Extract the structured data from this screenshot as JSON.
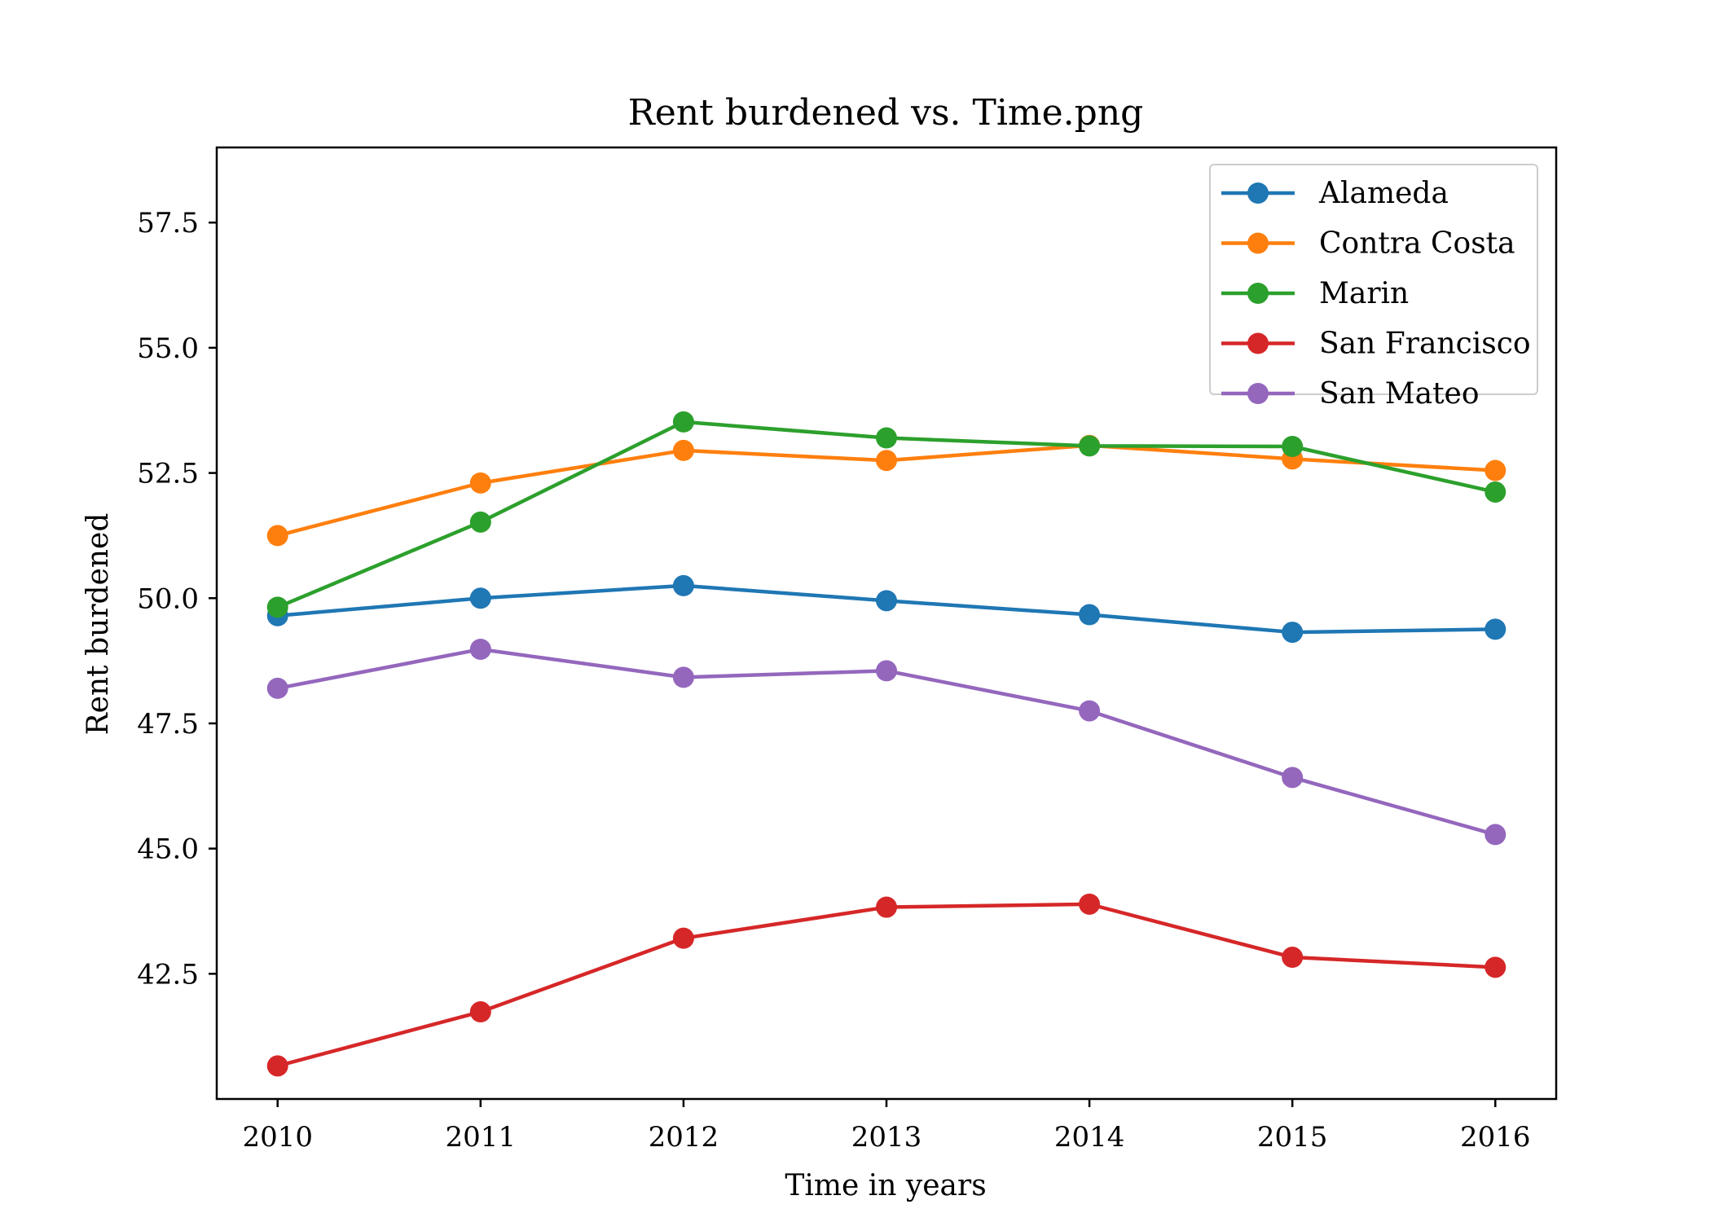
{
  "chart_data": {
    "type": "line",
    "title": "Rent burdened vs. Time.png",
    "xlabel": "Time in years",
    "ylabel": "Rent burdened",
    "x": [
      2010,
      2011,
      2012,
      2013,
      2014,
      2015,
      2016
    ],
    "x_tick_labels": [
      "2010",
      "2011",
      "2012",
      "2013",
      "2014",
      "2015",
      "2016"
    ],
    "xlim": [
      2009.7,
      2016.3
    ],
    "ylim": [
      40.0,
      59.0
    ],
    "y_ticks": [
      42.5,
      45.0,
      47.5,
      50.0,
      52.5,
      55.0,
      57.5
    ],
    "y_tick_labels": [
      "42.5",
      "45.0",
      "47.5",
      "50.0",
      "52.5",
      "55.0",
      "57.5"
    ],
    "grid": false,
    "legend_position": "top-right",
    "series": [
      {
        "name": "Alameda",
        "color": "#1f77b4",
        "values": [
          49.65,
          50.0,
          50.25,
          49.95,
          49.67,
          49.32,
          49.38
        ]
      },
      {
        "name": "Contra Costa",
        "color": "#ff7f0e",
        "values": [
          51.25,
          52.3,
          52.95,
          52.75,
          53.05,
          52.78,
          52.55
        ]
      },
      {
        "name": "Marin",
        "color": "#2ca02c",
        "values": [
          49.82,
          51.52,
          53.52,
          53.2,
          53.04,
          53.03,
          52.12
        ]
      },
      {
        "name": "San Francisco",
        "color": "#d62728",
        "values": [
          40.66,
          41.74,
          43.21,
          43.83,
          43.89,
          42.83,
          42.63
        ]
      },
      {
        "name": "San Mateo",
        "color": "#9467bd",
        "values": [
          48.2,
          48.98,
          48.42,
          48.55,
          47.75,
          46.42,
          45.28
        ]
      }
    ]
  }
}
